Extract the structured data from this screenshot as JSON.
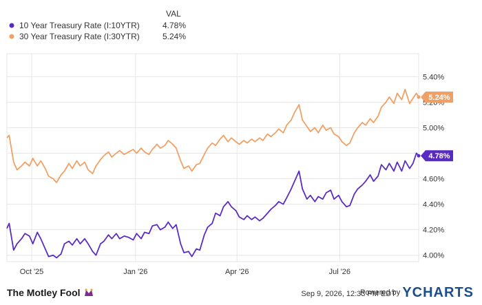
{
  "chart_data": {
    "type": "line",
    "title": "",
    "xlabel": "",
    "ylabel": "",
    "ylim": [
      3.95,
      5.58
    ],
    "y_ticks": [
      "4.00%",
      "4.20%",
      "4.40%",
      "4.60%",
      "4.80%",
      "5.00%",
      "5.20%",
      "5.40%"
    ],
    "y_tick_values": [
      4.0,
      4.2,
      4.4,
      4.6,
      4.8,
      5.0,
      5.2,
      5.4
    ],
    "x_ticks": [
      "Oct '25",
      "Jan '26",
      "Apr '26",
      "Jul '26"
    ],
    "x_tick_dates": [
      "2025-10-01",
      "2026-01-01",
      "2026-04-01",
      "2026-07-01"
    ],
    "xlim": [
      "2025-09-09",
      "2026-09-09"
    ],
    "grid": true,
    "legend": {
      "placement": "top-left",
      "header": "VAL"
    },
    "series": [
      {
        "name": "10 Year Treasury Rate (I:10YTR)",
        "value_label": "4.78%",
        "color": "#5a2bc2",
        "points": [
          [
            "2025-09-09",
            4.21
          ],
          [
            "2025-09-11",
            4.25
          ],
          [
            "2025-09-15",
            4.04
          ],
          [
            "2025-09-18",
            4.09
          ],
          [
            "2025-09-22",
            4.13
          ],
          [
            "2025-09-25",
            4.17
          ],
          [
            "2025-09-29",
            4.15
          ],
          [
            "2025-10-02",
            4.09
          ],
          [
            "2025-10-06",
            4.18
          ],
          [
            "2025-10-09",
            4.13
          ],
          [
            "2025-10-13",
            4.05
          ],
          [
            "2025-10-16",
            3.99
          ],
          [
            "2025-10-20",
            4.0
          ],
          [
            "2025-10-23",
            3.98
          ],
          [
            "2025-10-27",
            4.01
          ],
          [
            "2025-10-30",
            4.09
          ],
          [
            "2025-11-03",
            4.11
          ],
          [
            "2025-11-06",
            4.08
          ],
          [
            "2025-11-10",
            4.13
          ],
          [
            "2025-11-13",
            4.09
          ],
          [
            "2025-11-17",
            4.13
          ],
          [
            "2025-11-20",
            4.09
          ],
          [
            "2025-11-24",
            4.03
          ],
          [
            "2025-11-27",
            4.0
          ],
          [
            "2025-12-01",
            4.09
          ],
          [
            "2025-12-04",
            4.11
          ],
          [
            "2025-12-08",
            4.16
          ],
          [
            "2025-12-11",
            4.13
          ],
          [
            "2025-12-15",
            4.17
          ],
          [
            "2025-12-18",
            4.13
          ],
          [
            "2025-12-22",
            4.15
          ],
          [
            "2025-12-26",
            4.14
          ],
          [
            "2025-12-30",
            4.12
          ],
          [
            "2026-01-02",
            4.17
          ],
          [
            "2026-01-06",
            4.13
          ],
          [
            "2026-01-09",
            4.18
          ],
          [
            "2026-01-13",
            4.17
          ],
          [
            "2026-01-16",
            4.23
          ],
          [
            "2026-01-20",
            4.24
          ],
          [
            "2026-01-23",
            4.2
          ],
          [
            "2026-01-27",
            4.22
          ],
          [
            "2026-01-30",
            4.26
          ],
          [
            "2026-02-03",
            4.21
          ],
          [
            "2026-02-06",
            4.24
          ],
          [
            "2026-02-10",
            4.09
          ],
          [
            "2026-02-13",
            4.02
          ],
          [
            "2026-02-17",
            4.03
          ],
          [
            "2026-02-20",
            3.99
          ],
          [
            "2026-02-24",
            4.05
          ],
          [
            "2026-02-27",
            4.04
          ],
          [
            "2026-03-03",
            4.16
          ],
          [
            "2026-03-06",
            4.22
          ],
          [
            "2026-03-10",
            4.25
          ],
          [
            "2026-03-13",
            4.33
          ],
          [
            "2026-03-17",
            4.31
          ],
          [
            "2026-03-20",
            4.38
          ],
          [
            "2026-03-24",
            4.42
          ],
          [
            "2026-03-27",
            4.38
          ],
          [
            "2026-03-31",
            4.35
          ],
          [
            "2026-04-03",
            4.3
          ],
          [
            "2026-04-07",
            4.28
          ],
          [
            "2026-04-10",
            4.31
          ],
          [
            "2026-04-14",
            4.28
          ],
          [
            "2026-04-17",
            4.3
          ],
          [
            "2026-04-21",
            4.27
          ],
          [
            "2026-04-24",
            4.29
          ],
          [
            "2026-04-28",
            4.33
          ],
          [
            "2026-05-01",
            4.36
          ],
          [
            "2026-05-05",
            4.39
          ],
          [
            "2026-05-08",
            4.42
          ],
          [
            "2026-05-12",
            4.4
          ],
          [
            "2026-05-15",
            4.45
          ],
          [
            "2026-05-19",
            4.52
          ],
          [
            "2026-05-22",
            4.58
          ],
          [
            "2026-05-26",
            4.66
          ],
          [
            "2026-05-29",
            4.52
          ],
          [
            "2026-06-02",
            4.44
          ],
          [
            "2026-06-05",
            4.47
          ],
          [
            "2026-06-09",
            4.42
          ],
          [
            "2026-06-12",
            4.46
          ],
          [
            "2026-06-16",
            4.44
          ],
          [
            "2026-06-19",
            4.49
          ],
          [
            "2026-06-23",
            4.51
          ],
          [
            "2026-06-26",
            4.44
          ],
          [
            "2026-06-30",
            4.47
          ],
          [
            "2026-07-03",
            4.42
          ],
          [
            "2026-07-07",
            4.38
          ],
          [
            "2026-07-10",
            4.39
          ],
          [
            "2026-07-14",
            4.48
          ],
          [
            "2026-07-17",
            4.52
          ],
          [
            "2026-07-21",
            4.55
          ],
          [
            "2026-07-24",
            4.58
          ],
          [
            "2026-07-28",
            4.63
          ],
          [
            "2026-07-31",
            4.58
          ],
          [
            "2026-08-04",
            4.62
          ],
          [
            "2026-08-07",
            4.71
          ],
          [
            "2026-08-11",
            4.67
          ],
          [
            "2026-08-14",
            4.72
          ],
          [
            "2026-08-18",
            4.66
          ],
          [
            "2026-08-21",
            4.73
          ],
          [
            "2026-08-25",
            4.66
          ],
          [
            "2026-08-28",
            4.74
          ],
          [
            "2026-09-01",
            4.68
          ],
          [
            "2026-09-04",
            4.72
          ],
          [
            "2026-09-07",
            4.8
          ],
          [
            "2026-09-09",
            4.78
          ]
        ]
      },
      {
        "name": "30 Year Treasury Rate (I:30YTR)",
        "value_label": "5.24%",
        "color": "#f0a064",
        "points": [
          [
            "2025-09-09",
            4.92
          ],
          [
            "2025-09-11",
            4.94
          ],
          [
            "2025-09-15",
            4.73
          ],
          [
            "2025-09-18",
            4.67
          ],
          [
            "2025-09-22",
            4.7
          ],
          [
            "2025-09-25",
            4.73
          ],
          [
            "2025-09-29",
            4.7
          ],
          [
            "2025-10-02",
            4.76
          ],
          [
            "2025-10-06",
            4.7
          ],
          [
            "2025-10-09",
            4.74
          ],
          [
            "2025-10-13",
            4.68
          ],
          [
            "2025-10-16",
            4.62
          ],
          [
            "2025-10-20",
            4.6
          ],
          [
            "2025-10-23",
            4.57
          ],
          [
            "2025-10-27",
            4.63
          ],
          [
            "2025-10-30",
            4.66
          ],
          [
            "2025-11-03",
            4.72
          ],
          [
            "2025-11-06",
            4.68
          ],
          [
            "2025-11-10",
            4.74
          ],
          [
            "2025-11-13",
            4.7
          ],
          [
            "2025-11-17",
            4.73
          ],
          [
            "2025-11-20",
            4.67
          ],
          [
            "2025-11-24",
            4.64
          ],
          [
            "2025-11-27",
            4.7
          ],
          [
            "2025-12-01",
            4.75
          ],
          [
            "2025-12-04",
            4.78
          ],
          [
            "2025-12-08",
            4.81
          ],
          [
            "2025-12-11",
            4.77
          ],
          [
            "2025-12-15",
            4.8
          ],
          [
            "2025-12-18",
            4.82
          ],
          [
            "2025-12-22",
            4.79
          ],
          [
            "2025-12-26",
            4.81
          ],
          [
            "2025-12-30",
            4.83
          ],
          [
            "2026-01-02",
            4.8
          ],
          [
            "2026-01-06",
            4.84
          ],
          [
            "2026-01-09",
            4.81
          ],
          [
            "2026-01-13",
            4.79
          ],
          [
            "2026-01-16",
            4.83
          ],
          [
            "2026-01-20",
            4.87
          ],
          [
            "2026-01-23",
            4.84
          ],
          [
            "2026-01-27",
            4.86
          ],
          [
            "2026-01-30",
            4.9
          ],
          [
            "2026-02-03",
            4.87
          ],
          [
            "2026-02-06",
            4.84
          ],
          [
            "2026-02-10",
            4.74
          ],
          [
            "2026-02-13",
            4.68
          ],
          [
            "2026-02-17",
            4.7
          ],
          [
            "2026-02-20",
            4.66
          ],
          [
            "2026-02-24",
            4.71
          ],
          [
            "2026-02-27",
            4.72
          ],
          [
            "2026-03-03",
            4.79
          ],
          [
            "2026-03-06",
            4.84
          ],
          [
            "2026-03-10",
            4.88
          ],
          [
            "2026-03-13",
            4.86
          ],
          [
            "2026-03-17",
            4.91
          ],
          [
            "2026-03-20",
            4.94
          ],
          [
            "2026-03-24",
            4.89
          ],
          [
            "2026-03-27",
            4.92
          ],
          [
            "2026-03-31",
            4.89
          ],
          [
            "2026-04-03",
            4.87
          ],
          [
            "2026-04-07",
            4.9
          ],
          [
            "2026-04-10",
            4.88
          ],
          [
            "2026-04-14",
            4.91
          ],
          [
            "2026-04-17",
            4.89
          ],
          [
            "2026-04-21",
            4.92
          ],
          [
            "2026-04-24",
            4.9
          ],
          [
            "2026-04-28",
            4.95
          ],
          [
            "2026-05-01",
            4.93
          ],
          [
            "2026-05-05",
            4.96
          ],
          [
            "2026-05-08",
            4.99
          ],
          [
            "2026-05-12",
            4.96
          ],
          [
            "2026-05-15",
            5.02
          ],
          [
            "2026-05-19",
            5.06
          ],
          [
            "2026-05-22",
            5.12
          ],
          [
            "2026-05-26",
            5.18
          ],
          [
            "2026-05-29",
            5.06
          ],
          [
            "2026-06-02",
            5.01
          ],
          [
            "2026-06-05",
            4.97
          ],
          [
            "2026-06-09",
            5.0
          ],
          [
            "2026-06-12",
            4.96
          ],
          [
            "2026-06-16",
            5.02
          ],
          [
            "2026-06-19",
            4.98
          ],
          [
            "2026-06-23",
            5.0
          ],
          [
            "2026-06-26",
            4.95
          ],
          [
            "2026-06-30",
            4.93
          ],
          [
            "2026-07-03",
            4.89
          ],
          [
            "2026-07-07",
            4.86
          ],
          [
            "2026-07-10",
            4.88
          ],
          [
            "2026-07-14",
            4.96
          ],
          [
            "2026-07-17",
            5.0
          ],
          [
            "2026-07-21",
            5.04
          ],
          [
            "2026-07-24",
            5.02
          ],
          [
            "2026-07-28",
            5.07
          ],
          [
            "2026-07-31",
            5.04
          ],
          [
            "2026-08-04",
            5.09
          ],
          [
            "2026-08-07",
            5.16
          ],
          [
            "2026-08-11",
            5.2
          ],
          [
            "2026-08-14",
            5.24
          ],
          [
            "2026-08-18",
            5.19
          ],
          [
            "2026-08-21",
            5.27
          ],
          [
            "2026-08-25",
            5.22
          ],
          [
            "2026-08-28",
            5.3
          ],
          [
            "2026-09-01",
            5.19
          ],
          [
            "2026-09-04",
            5.23
          ],
          [
            "2026-09-07",
            5.27
          ],
          [
            "2026-09-09",
            5.24
          ]
        ]
      }
    ]
  },
  "footer": {
    "brand": "The Motley Fool",
    "timestamp": "Sep 9, 2026, 12:33 PM EDT",
    "powered_by": "Powered by",
    "provider": "YCHARTS"
  }
}
